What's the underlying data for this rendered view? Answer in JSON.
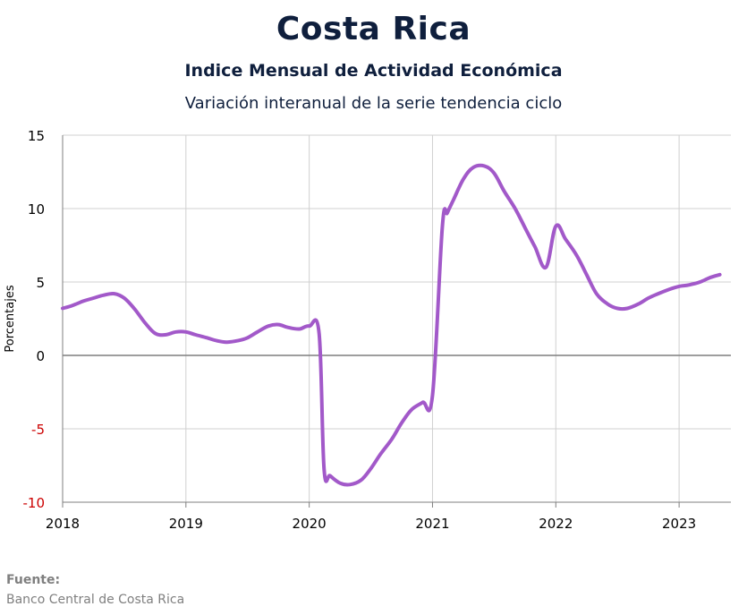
{
  "header": {
    "title": "Costa Rica",
    "subtitle": "Indice Mensual de  Actividad Económica",
    "subtitle2": "Variación interanual de la serie tendencia ciclo"
  },
  "footer": {
    "source_label": "Fuente:",
    "source_text": "Banco Central de Costa Rica"
  },
  "colors": {
    "line": "#a259c9",
    "grid": "#d0d0d0",
    "zero_line": "#7f7f7f",
    "negative_tick": "#cc0000",
    "tick": "#000000"
  },
  "chart_data": {
    "type": "line",
    "title": "Costa Rica",
    "xlabel": "",
    "ylabel": "Porcentajes",
    "ylim": [
      -10,
      15
    ],
    "xlim": [
      2018.0,
      2023.42
    ],
    "yticks": [
      "15",
      "10",
      "5",
      "0",
      "-5",
      "-10"
    ],
    "xticks": [
      "2018",
      "2019",
      "2020",
      "2021",
      "2022",
      "2023"
    ],
    "grid": true,
    "series": [
      {
        "x": [
          2018.0,
          2018.08,
          2018.17,
          2018.25,
          2018.33,
          2018.42,
          2018.5,
          2018.58,
          2018.67,
          2018.75,
          2018.83,
          2018.92,
          2019.0,
          2019.08,
          2019.17,
          2019.25,
          2019.33,
          2019.42,
          2019.5,
          2019.58,
          2019.67,
          2019.75,
          2019.83,
          2019.92,
          2020.0,
          2020.08,
          2020.12,
          2020.17,
          2020.25,
          2020.33,
          2020.42,
          2020.5,
          2020.58,
          2020.67,
          2020.75,
          2020.83,
          2020.92,
          2021.0,
          2021.08,
          2021.12,
          2021.17,
          2021.25,
          2021.33,
          2021.42,
          2021.5,
          2021.58,
          2021.67,
          2021.75,
          2021.83,
          2021.92,
          2022.0,
          2022.08,
          2022.17,
          2022.25,
          2022.33,
          2022.42,
          2022.5,
          2022.58,
          2022.67,
          2022.75,
          2022.83,
          2022.92,
          2023.0,
          2023.08,
          2023.17,
          2023.25,
          2023.33
        ],
        "y": [
          3.2,
          3.4,
          3.7,
          3.9,
          4.1,
          4.2,
          3.9,
          3.2,
          2.2,
          1.5,
          1.4,
          1.6,
          1.6,
          1.4,
          1.2,
          1.0,
          0.9,
          1.0,
          1.2,
          1.6,
          2.0,
          2.1,
          1.9,
          1.8,
          2.0,
          1.5,
          -7.7,
          -8.2,
          -8.7,
          -8.8,
          -8.5,
          -7.7,
          -6.7,
          -5.7,
          -4.6,
          -3.7,
          -3.2,
          -2.7,
          8.8,
          9.7,
          10.6,
          12.0,
          12.8,
          12.9,
          12.4,
          11.2,
          10.0,
          8.7,
          7.4,
          6.0,
          8.8,
          7.9,
          6.8,
          5.5,
          4.2,
          3.5,
          3.2,
          3.2,
          3.5,
          3.9,
          4.2,
          4.5,
          4.7,
          4.8,
          5.0,
          5.3,
          5.5
        ]
      }
    ]
  }
}
